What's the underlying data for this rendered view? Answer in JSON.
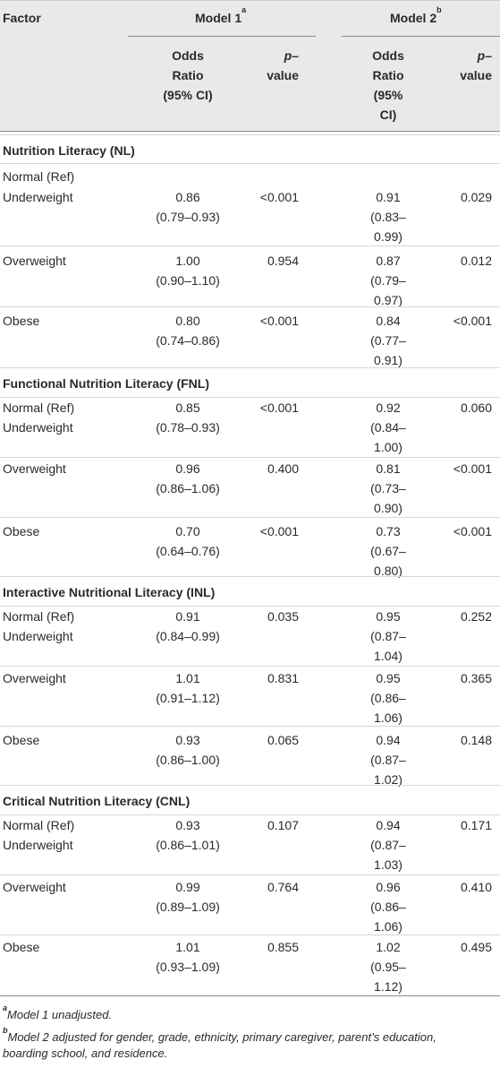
{
  "header": {
    "factor": "Factor",
    "model1": "Model 1",
    "model1_sup": "a",
    "model2": "Model 2",
    "model2_sup": "b",
    "or_col": [
      "Odds",
      "Ratio",
      "(95% CI)"
    ],
    "p_col": [
      "p–",
      "value"
    ],
    "or_col2": [
      "Odds",
      "Ratio",
      "(95%",
      "CI)"
    ],
    "p_col2": [
      "p–",
      "value"
    ]
  },
  "rows": [
    {
      "type": "section",
      "label": "Nutrition Literacy (NL)"
    },
    {
      "type": "row",
      "label": "Normal (Ref)"
    },
    {
      "type": "row",
      "label": "Underweight",
      "or1": [
        "0.86",
        "(0.79–0.93)"
      ],
      "p1": "<0.001",
      "or2": [
        "0.91",
        "(0.83–",
        "0.99)"
      ],
      "p2": "0.029"
    },
    {
      "type": "row",
      "label": "Overweight",
      "or1": [
        "1.00",
        "(0.90–1.10)"
      ],
      "p1": "0.954",
      "or2": [
        "0.87",
        "(0.79–",
        "0.97)"
      ],
      "p2": "0.012"
    },
    {
      "type": "row",
      "label": "Obese",
      "or1": [
        "0.80",
        "(0.74–0.86)"
      ],
      "p1": "<0.001",
      "or2": [
        "0.84",
        "(0.77–",
        "0.91)"
      ],
      "p2": "<0.001"
    },
    {
      "type": "section",
      "label": "Functional Nutrition Literacy (FNL)"
    },
    {
      "type": "row",
      "label": "Normal (Ref)",
      "label2": "Underweight",
      "or1": [
        "0.85",
        "(0.78–0.93)"
      ],
      "p1": "<0.001",
      "or2": [
        "0.92",
        "(0.84–",
        "1.00)"
      ],
      "p2": "0.060"
    },
    {
      "type": "row",
      "label": "Overweight",
      "or1": [
        "0.96",
        "(0.86–1.06)"
      ],
      "p1": "0.400",
      "or2": [
        "0.81",
        "(0.73–",
        "0.90)"
      ],
      "p2": "<0.001"
    },
    {
      "type": "row",
      "label": "Obese",
      "or1": [
        "0.70",
        "(0.64–0.76)"
      ],
      "p1": "<0.001",
      "or2": [
        "0.73",
        "(0.67–",
        "0.80)"
      ],
      "p2": "<0.001"
    },
    {
      "type": "section",
      "label": "Interactive Nutritional Literacy (INL)"
    },
    {
      "type": "row",
      "label": "Normal (Ref)",
      "label2": "Underweight",
      "or1": [
        "0.91",
        "(0.84–0.99)"
      ],
      "p1": "0.035",
      "or2": [
        "0.95",
        "(0.87–",
        "1.04)"
      ],
      "p2": "0.252"
    },
    {
      "type": "row",
      "label": "Overweight",
      "or1": [
        "1.01",
        "(0.91–1.12)"
      ],
      "p1": "0.831",
      "or2": [
        "0.95",
        "(0.86–",
        "1.06)"
      ],
      "p2": "0.365"
    },
    {
      "type": "row",
      "label": "Obese",
      "or1": [
        "0.93",
        "(0.86–1.00)"
      ],
      "p1": "0.065",
      "or2": [
        "0.94",
        "(0.87–",
        "1.02)"
      ],
      "p2": "0.148"
    },
    {
      "type": "section",
      "label": "Critical Nutrition Literacy (CNL)"
    },
    {
      "type": "row",
      "label": "Normal (Ref)",
      "label2": "Underweight",
      "or1": [
        "0.93",
        "(0.86–1.01)"
      ],
      "p1": "0.107",
      "or2": [
        "0.94",
        "(0.87–",
        "1.03)"
      ],
      "p2": "0.171"
    },
    {
      "type": "row",
      "label": "Overweight",
      "or1": [
        "0.99",
        "(0.89–1.09)"
      ],
      "p1": "0.764",
      "or2": [
        "0.96",
        "(0.86–",
        "1.06)"
      ],
      "p2": "0.410"
    },
    {
      "type": "row",
      "label": "Obese",
      "or1": [
        "1.01",
        "(0.93–1.09)"
      ],
      "p1": "0.855",
      "or2": [
        "1.02",
        "(0.95–",
        "1.12)"
      ],
      "p2": "0.495"
    }
  ],
  "footnotes": [
    {
      "mark": "a",
      "text": "Model 1 unadjusted."
    },
    {
      "mark": "b",
      "text": "Model 2 adjusted for gender, grade, ethnicity, primary caregiver, parent’s education,",
      "text2": "boarding school, and residence."
    }
  ]
}
